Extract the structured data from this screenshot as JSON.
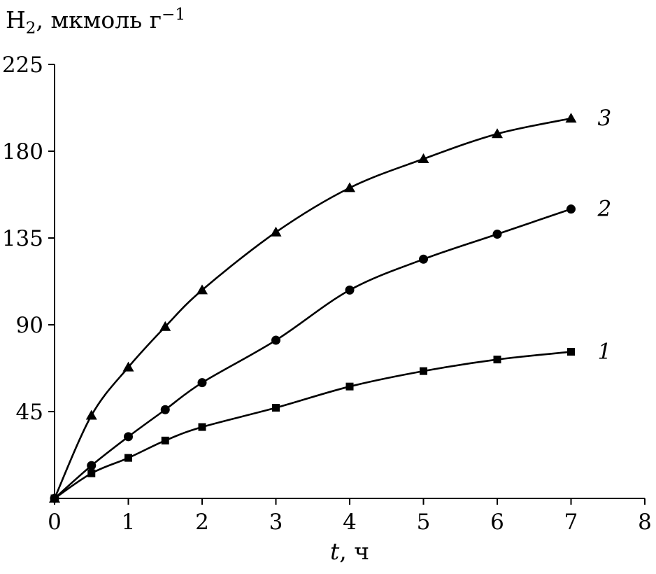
{
  "page": {
    "background": "#ffffff"
  },
  "chart_data": {
    "type": "line",
    "title": "",
    "ylabel_parts": {
      "base": "H",
      "sub": "2",
      "rest": ", мкмоль г",
      "sup": "−1"
    },
    "xlabel_parts": {
      "italic": "t",
      "rest": ", ч"
    },
    "x": [
      0,
      0.5,
      1,
      1.5,
      2,
      3,
      4,
      5,
      6,
      7
    ],
    "series": [
      {
        "name": "1",
        "marker": "square",
        "values": [
          0,
          13,
          21,
          30,
          37,
          47,
          58,
          66,
          72,
          76
        ]
      },
      {
        "name": "2",
        "marker": "circle",
        "values": [
          0,
          17,
          32,
          46,
          60,
          82,
          108,
          124,
          137,
          150
        ]
      },
      {
        "name": "3",
        "marker": "triangle",
        "values": [
          0,
          43,
          68,
          89,
          108,
          138,
          161,
          176,
          189,
          197
        ]
      }
    ],
    "xlim": [
      0,
      8
    ],
    "ylim": [
      0,
      225
    ],
    "xticks": [
      0,
      1,
      2,
      3,
      4,
      5,
      6,
      7,
      8
    ],
    "yticks": [
      45,
      90,
      135,
      180,
      225
    ],
    "line_color": "#000000",
    "axis_color": "#000000",
    "grid": false,
    "legend": "inline-labels-right-of-curves"
  }
}
